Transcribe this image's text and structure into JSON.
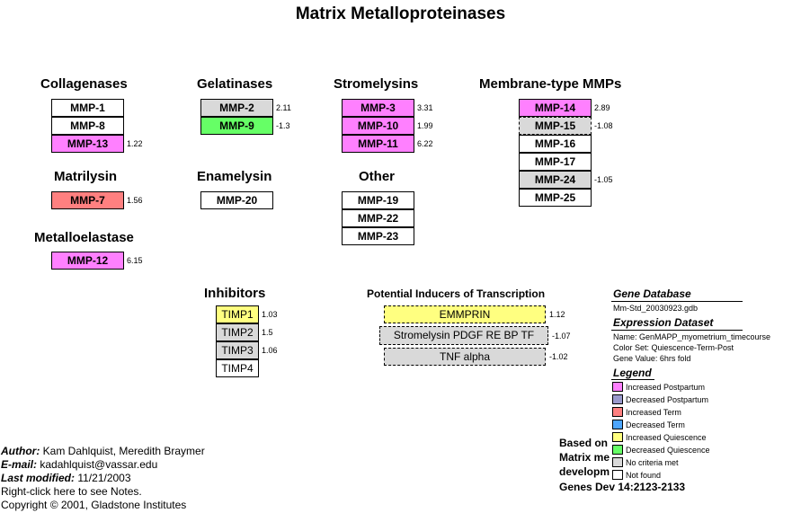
{
  "title": "Matrix Metalloproteinases",
  "groups": {
    "collagenases": "Collagenases",
    "gelatinases": "Gelatinases",
    "stromelysins": "Stromelysins",
    "membrane": "Membrane-type MMPs",
    "matrilysin": "Matrilysin",
    "enamelysin": "Enamelysin",
    "other": "Other",
    "metalloelastase": "Metalloelastase",
    "inhibitors": "Inhibitors",
    "inducers": "Potential Inducers of Transcription"
  },
  "genes": {
    "mmp1": {
      "label": "MMP-1",
      "value": ""
    },
    "mmp8": {
      "label": "MMP-8",
      "value": ""
    },
    "mmp13": {
      "label": "MMP-13",
      "value": "1.22"
    },
    "mmp2": {
      "label": "MMP-2",
      "value": "2.11"
    },
    "mmp9": {
      "label": "MMP-9",
      "value": "-1.3"
    },
    "mmp3": {
      "label": "MMP-3",
      "value": "3.31"
    },
    "mmp10": {
      "label": "MMP-10",
      "value": "1.99"
    },
    "mmp11": {
      "label": "MMP-11",
      "value": "6.22"
    },
    "mmp14": {
      "label": "MMP-14",
      "value": "2.89"
    },
    "mmp15": {
      "label": "MMP-15",
      "value": "-1.08"
    },
    "mmp16": {
      "label": "MMP-16",
      "value": ""
    },
    "mmp17": {
      "label": "MMP-17",
      "value": ""
    },
    "mmp24": {
      "label": "MMP-24",
      "value": "-1.05"
    },
    "mmp25": {
      "label": "MMP-25",
      "value": ""
    },
    "mmp7": {
      "label": "MMP-7",
      "value": "1.56"
    },
    "mmp20": {
      "label": "MMP-20",
      "value": ""
    },
    "mmp19": {
      "label": "MMP-19",
      "value": ""
    },
    "mmp22": {
      "label": "MMP-22",
      "value": ""
    },
    "mmp23": {
      "label": "MMP-23",
      "value": ""
    },
    "mmp12": {
      "label": "MMP-12",
      "value": "6.15"
    },
    "timp1": {
      "label": "TIMP1",
      "value": "1.03"
    },
    "timp2": {
      "label": "TIMP2",
      "value": "1.5"
    },
    "timp3": {
      "label": "TIMP3",
      "value": "1.06"
    },
    "timp4": {
      "label": "TIMP4",
      "value": ""
    },
    "emmprin": {
      "label": "EMMPRIN",
      "value": "1.12"
    },
    "stromelysin_pdgf": {
      "label": "Stromelysin PDGF RE BP TF",
      "value": "-1.07"
    },
    "tnf": {
      "label": "TNF alpha",
      "value": "-1.02"
    }
  },
  "info": {
    "gene_db_header": "Gene Database",
    "gene_db": "Mm-Std_20030923.gdb",
    "expr_header": "Expression Dataset",
    "expr_name": "Name: GenMAPP_myometrium_timecourse",
    "color_set": "Color Set: Quiescence-Term-Post",
    "gene_value": "Gene Value: 6hrs fold",
    "legend_header": "Legend"
  },
  "legend": [
    {
      "label": "Increased Postpartum",
      "color": "#ff80ff"
    },
    {
      "label": "Decreased Postpartum",
      "color": "#9999cc"
    },
    {
      "label": "Increased Term",
      "color": "#ff8080"
    },
    {
      "label": "Decreased Term",
      "color": "#4da6ff"
    },
    {
      "label": "Increased Quiescence",
      "color": "#ffff80"
    },
    {
      "label": "Decreased Quiescence",
      "color": "#66ff66"
    },
    {
      "label": "No criteria met",
      "color": "#d9d9d9"
    },
    {
      "label": "Not found",
      "color": "#ffffff"
    }
  ],
  "colors": {
    "increased_postpartum": "#ff80ff",
    "increased_term": "#ff8080",
    "increased_quiescence": "#ffff80",
    "decreased_quiescence": "#66ff66",
    "no_criteria": "#d9d9d9",
    "not_found": "#ffffff"
  },
  "footer": {
    "author_label": "Author:",
    "author": " Kam Dahlquist, Meredith Braymer",
    "email_label": "E-mail:",
    "email": " kadahlquist@vassar.edu",
    "modified_label": "Last modified:",
    "modified": " 11/21/2003",
    "notes": "Right-click here to see Notes.",
    "copyright": "Copyright © 2001, Gladstone Institutes"
  },
  "based_on": {
    "line1": "Based on",
    "line2": "Matrix me",
    "line3": "developm",
    "line4": "Genes Dev 14:2123-2133"
  }
}
